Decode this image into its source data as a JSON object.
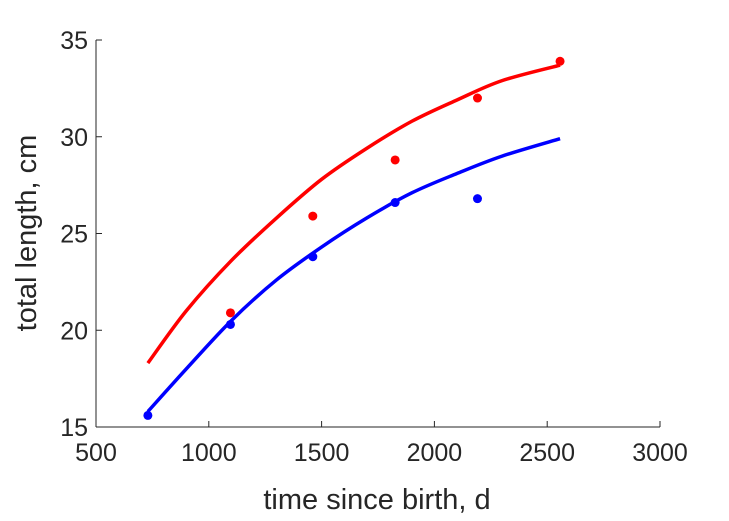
{
  "chart_data": {
    "type": "scatter",
    "title": "",
    "xlabel": "time since birth, d",
    "ylabel": "total length, cm",
    "xlim": [
      500,
      3000
    ],
    "ylim": [
      15,
      35
    ],
    "xticks": [
      500,
      1000,
      1500,
      2000,
      2500,
      3000
    ],
    "yticks": [
      15,
      20,
      25,
      30,
      35
    ],
    "grid": false,
    "legend": "none",
    "series": [
      {
        "color": "#ff0000",
        "points": [
          {
            "x": 1096,
            "y": 20.9
          },
          {
            "x": 1461,
            "y": 25.9
          },
          {
            "x": 1826,
            "y": 28.8
          },
          {
            "x": 2191,
            "y": 32.0
          },
          {
            "x": 2557,
            "y": 33.9
          }
        ],
        "curve": [
          {
            "x": 730,
            "y": 18.3
          },
          {
            "x": 900,
            "y": 21.0
          },
          {
            "x": 1100,
            "y": 23.6
          },
          {
            "x": 1300,
            "y": 25.8
          },
          {
            "x": 1500,
            "y": 27.8
          },
          {
            "x": 1700,
            "y": 29.4
          },
          {
            "x": 1900,
            "y": 30.8
          },
          {
            "x": 2100,
            "y": 31.9
          },
          {
            "x": 2300,
            "y": 32.9
          },
          {
            "x": 2557,
            "y": 33.7
          }
        ]
      },
      {
        "color": "#0000ff",
        "points": [
          {
            "x": 730,
            "y": 15.6
          },
          {
            "x": 1096,
            "y": 20.3
          },
          {
            "x": 1461,
            "y": 23.8
          },
          {
            "x": 1826,
            "y": 26.6
          },
          {
            "x": 2191,
            "y": 26.8
          }
        ],
        "curve": [
          {
            "x": 730,
            "y": 15.8
          },
          {
            "x": 900,
            "y": 18.0
          },
          {
            "x": 1100,
            "y": 20.5
          },
          {
            "x": 1300,
            "y": 22.6
          },
          {
            "x": 1500,
            "y": 24.3
          },
          {
            "x": 1700,
            "y": 25.8
          },
          {
            "x": 1900,
            "y": 27.1
          },
          {
            "x": 2100,
            "y": 28.1
          },
          {
            "x": 2300,
            "y": 29.0
          },
          {
            "x": 2557,
            "y": 29.9
          }
        ]
      }
    ]
  }
}
